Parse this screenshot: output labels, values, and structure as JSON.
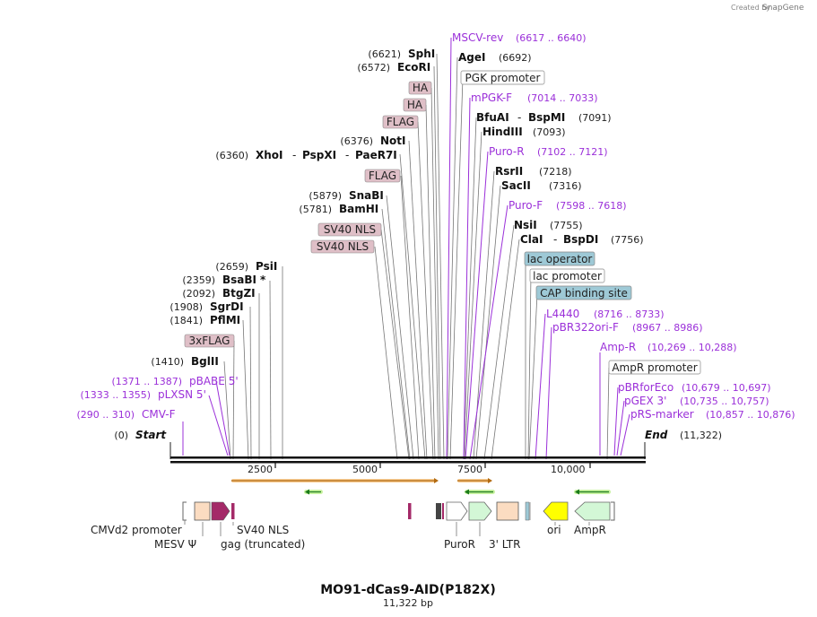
{
  "credit": {
    "prefix": "Created by",
    "brand": "SnapGene"
  },
  "plasmid": {
    "name": "MO91-dCas9-AID(P182X)",
    "length": "11,322 bp"
  },
  "scale": {
    "ticks": [
      "2500",
      "5000",
      "7500",
      "10,000"
    ]
  },
  "sites_left": [
    {
      "pos": "(6621)",
      "name": "SphI"
    },
    {
      "pos": "(6572)",
      "name": "EcoRI"
    },
    {
      "box": "HA"
    },
    {
      "box": "HA"
    },
    {
      "box": "FLAG"
    },
    {
      "pos": "(6376)",
      "name": "NotI"
    },
    {
      "pos": "(6360)",
      "name": "XhoI",
      "name2": "PspXI",
      "name3": "PaeR7I"
    },
    {
      "box": "FLAG"
    },
    {
      "pos": "(5879)",
      "name": "SnaBI"
    },
    {
      "pos": "(5781)",
      "name": "BamHI"
    },
    {
      "box": "SV40 NLS"
    },
    {
      "box": "SV40 NLS"
    },
    {
      "pos": "(2659)",
      "name": "PsiI"
    },
    {
      "pos": "(2359)",
      "name": "BsaBI",
      "star": "*"
    },
    {
      "pos": "(2092)",
      "name": "BtgZI"
    },
    {
      "pos": "(1908)",
      "name": "SgrDI"
    },
    {
      "pos": "(1841)",
      "name": "PflMI"
    },
    {
      "box": "3xFLAG"
    },
    {
      "pos": "(1410)",
      "name": "BglII"
    }
  ],
  "primers_left": [
    {
      "pos": "(1371 .. 1387)",
      "name": "pBABE 5'"
    },
    {
      "pos": "(1333 .. 1355)",
      "name": "pLXSN 5'"
    },
    {
      "pos": "(290 .. 310)",
      "name": "CMV-F"
    }
  ],
  "start": {
    "pos": "(0)",
    "name": "Start"
  },
  "end": {
    "name": "End",
    "pos": "(11,322)"
  },
  "sites_right": [
    {
      "name": "MSCV-rev",
      "pos": "(6617 .. 6640)",
      "type": "primer"
    },
    {
      "name": "AgeI",
      "pos": "(6692)",
      "type": "enzyme"
    },
    {
      "name": "PGK promoter",
      "type": "box"
    },
    {
      "name": "mPGK-F",
      "pos": "(7014 .. 7033)",
      "type": "primer"
    },
    {
      "name": "BfuAI",
      "name2": "BspMI",
      "pos": "(7091)",
      "type": "enzyme"
    },
    {
      "name": "HindIII",
      "pos": "(7093)",
      "type": "enzyme"
    },
    {
      "name": "Puro-R",
      "pos": "(7102 .. 7121)",
      "type": "primer"
    },
    {
      "name": "RsrII",
      "pos": "(7218)",
      "type": "enzyme"
    },
    {
      "name": "SacII",
      "pos": "(7316)",
      "type": "enzyme"
    },
    {
      "name": "Puro-F",
      "pos": "(7598 .. 7618)",
      "type": "primer"
    },
    {
      "name": "NsiI",
      "pos": "(7755)",
      "type": "enzyme"
    },
    {
      "name": "ClaI",
      "name2": "BspDI",
      "pos": "(7756)",
      "type": "enzyme"
    },
    {
      "name": "lac operator",
      "type": "box"
    },
    {
      "name": "lac promoter",
      "type": "box"
    },
    {
      "name": "CAP binding site",
      "type": "box"
    },
    {
      "name": "L4440",
      "pos": "(8716 .. 8733)",
      "type": "primer"
    },
    {
      "name": "pBR322ori-F",
      "pos": "(8967 .. 8986)",
      "type": "primer"
    },
    {
      "name": "Amp-R",
      "pos": "(10,269 .. 10,288)",
      "type": "primer"
    },
    {
      "name": "AmpR promoter",
      "type": "box"
    },
    {
      "name": "pBRforEco",
      "pos": "(10,679 .. 10,697)",
      "type": "primer"
    },
    {
      "name": "pGEX 3'",
      "pos": "(10,735 .. 10,757)",
      "type": "primer"
    },
    {
      "name": "pRS-marker",
      "pos": "(10,857 .. 10,876)",
      "type": "primer"
    }
  ],
  "features_bottom": [
    {
      "name": "CMVd2 promoter"
    },
    {
      "name": "MESV Ψ"
    },
    {
      "name": "gag (truncated)"
    },
    {
      "name": "SV40 NLS"
    },
    {
      "name": "PuroR"
    },
    {
      "name": "3' LTR"
    },
    {
      "name": "ori"
    },
    {
      "name": "AmpR"
    }
  ],
  "colors": {
    "primer": "#9b30d9",
    "feature_box": "#dfbfc7",
    "lac_box": "#9ec9d6",
    "orf": "#f2a33a",
    "puro": "#d3f7d6",
    "ori": "#ffff00",
    "ltr": "#fbdcc1",
    "gag": "#a42a68"
  }
}
